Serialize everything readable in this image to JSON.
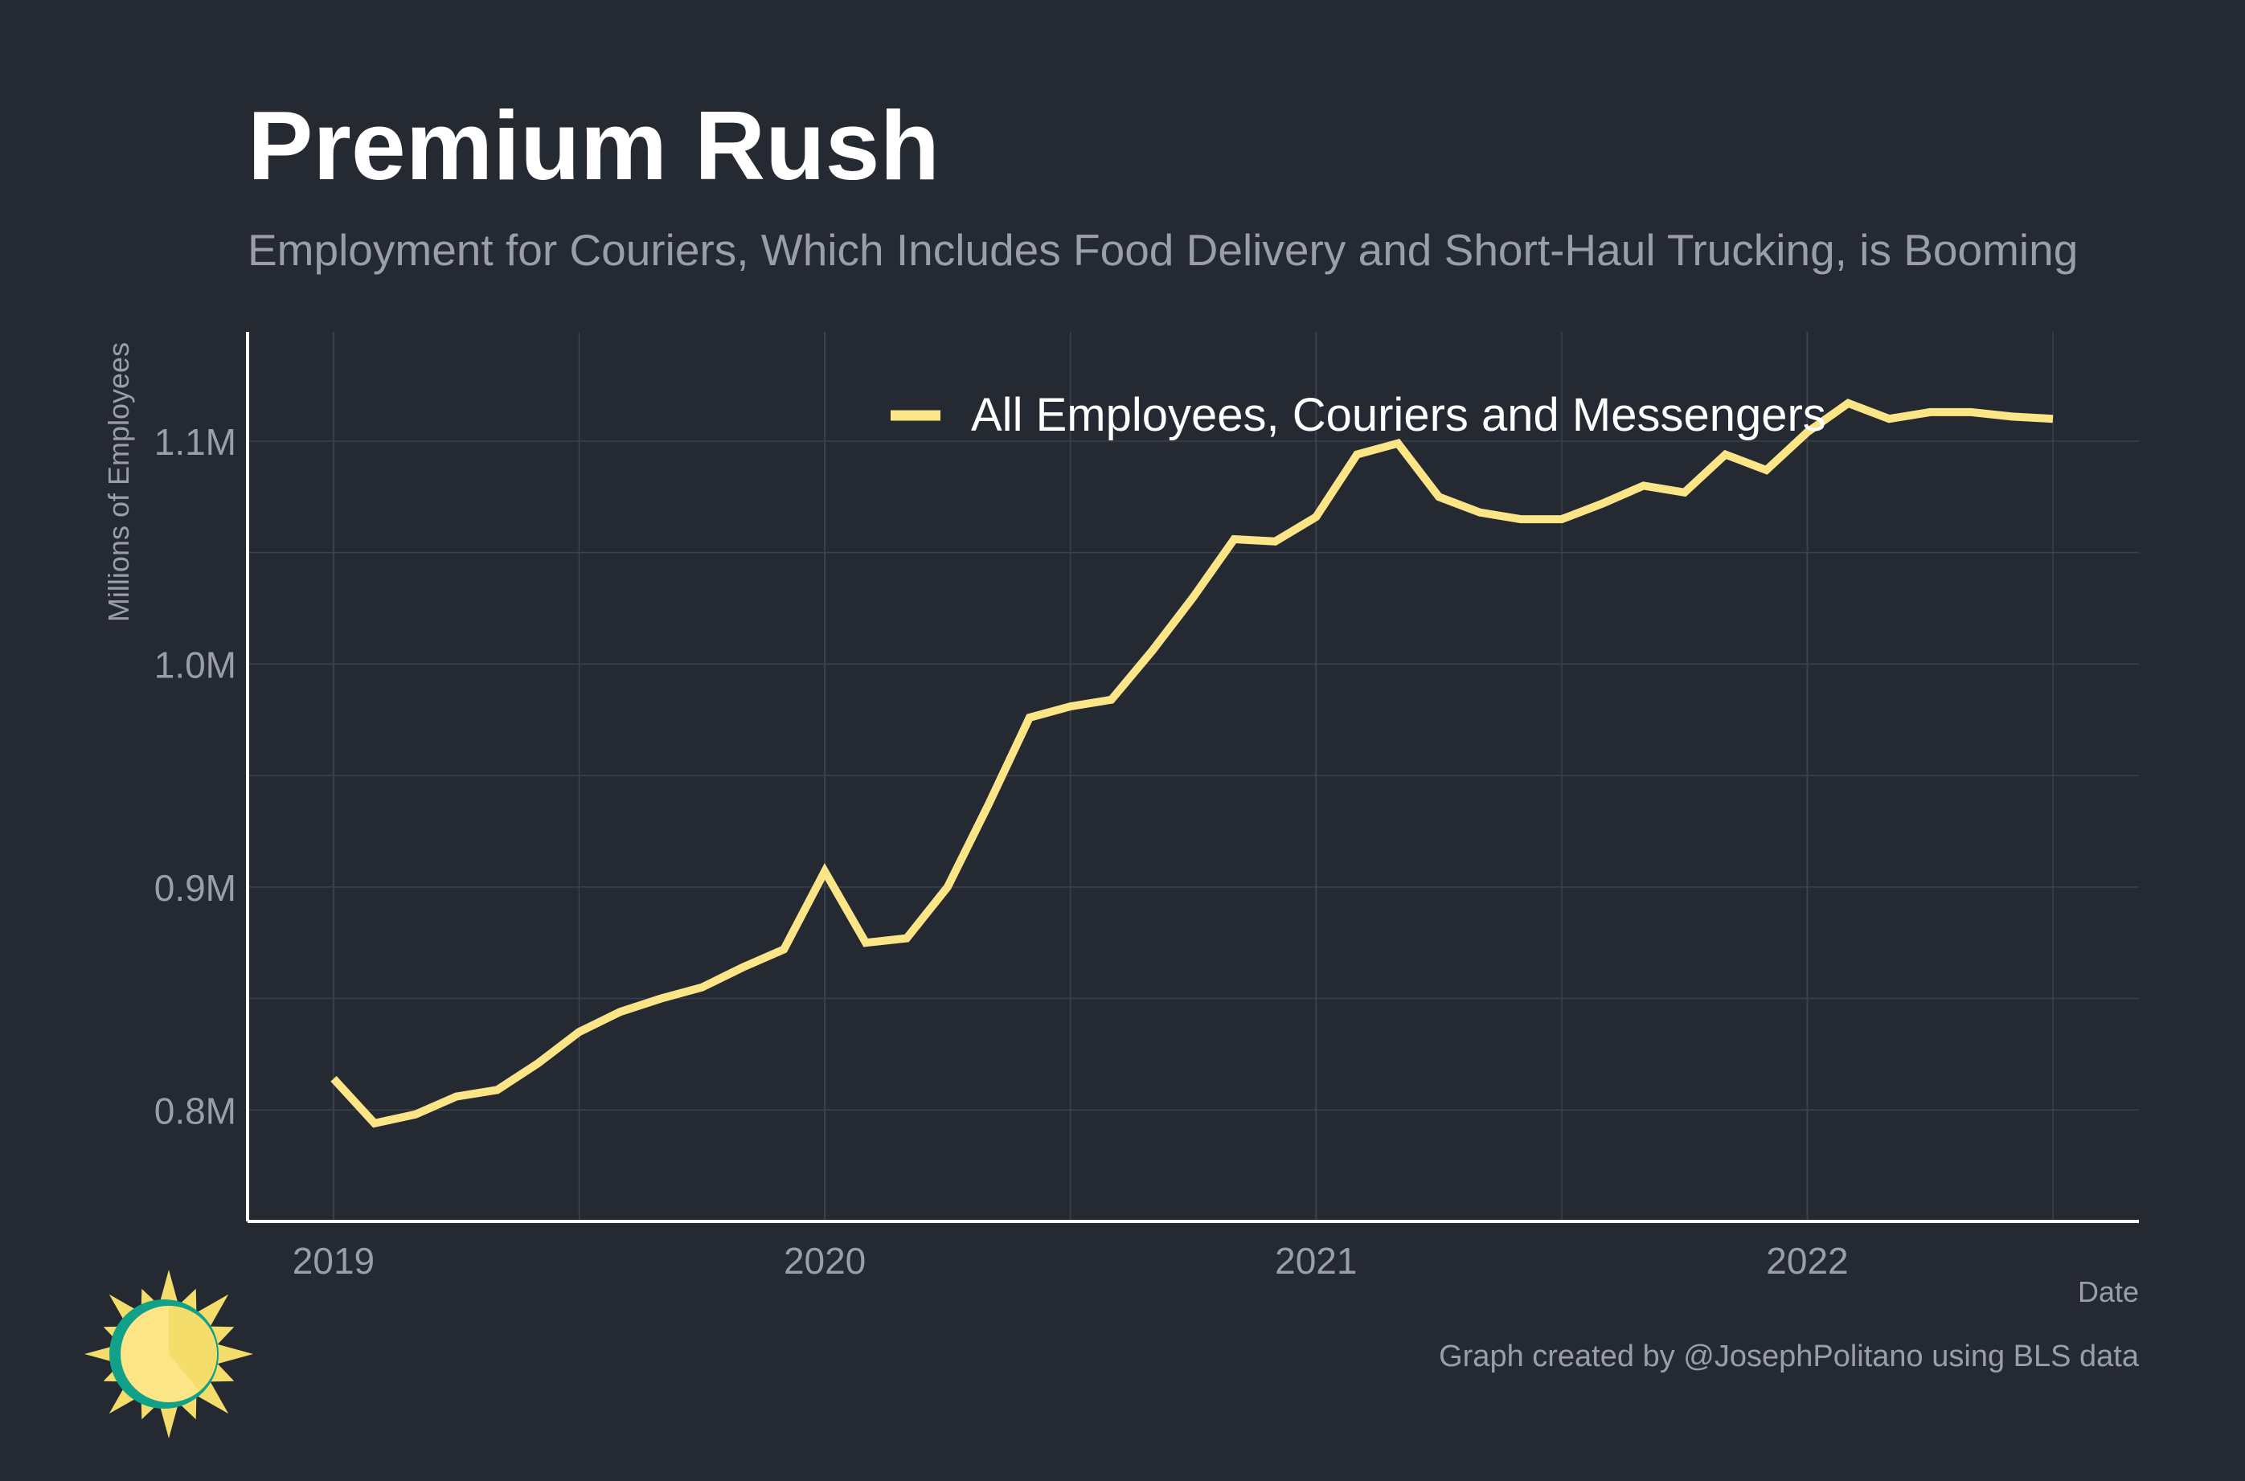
{
  "chart_data": {
    "type": "line",
    "title": "Premium Rush",
    "subtitle": "Employment for Couriers, Which Includes Food Delivery and Short-Haul Trucking, is Booming",
    "xlabel": "Date",
    "ylabel": "Millions of Employees",
    "caption": "Graph created by @JosephPolitano using BLS data",
    "x_tick_labels": [
      "2019",
      "2020",
      "2021",
      "2022"
    ],
    "y_tick_labels": [
      "0.8M",
      "0.9M",
      "1.0M",
      "1.1M"
    ],
    "x_ticks": [
      2019,
      2020,
      2021,
      2022
    ],
    "y_ticks": [
      0.8,
      0.9,
      1.0,
      1.1
    ],
    "xlim": [
      2018.825,
      2022.675
    ],
    "ylim": [
      0.75,
      1.149
    ],
    "grid": true,
    "legend_position": "top-right",
    "series": [
      {
        "name": "All Employees, Couriers and Messengers",
        "color": "#fce586",
        "x": [
          "2019-01",
          "2019-02",
          "2019-03",
          "2019-04",
          "2019-05",
          "2019-06",
          "2019-07",
          "2019-08",
          "2019-09",
          "2019-10",
          "2019-11",
          "2019-12",
          "2020-01",
          "2020-02",
          "2020-03",
          "2020-04",
          "2020-05",
          "2020-06",
          "2020-07",
          "2020-08",
          "2020-09",
          "2020-10",
          "2020-11",
          "2020-12",
          "2021-01",
          "2021-02",
          "2021-03",
          "2021-04",
          "2021-05",
          "2021-06",
          "2021-07",
          "2021-08",
          "2021-09",
          "2021-10",
          "2021-11",
          "2021-12",
          "2022-01",
          "2022-02",
          "2022-03",
          "2022-04",
          "2022-05",
          "2022-06",
          "2022-07"
        ],
        "values": [
          0.814,
          0.794,
          0.798,
          0.806,
          0.809,
          0.821,
          0.835,
          0.844,
          0.85,
          0.855,
          0.864,
          0.872,
          0.907,
          0.875,
          0.877,
          0.9,
          0.937,
          0.976,
          0.981,
          0.984,
          1.006,
          1.03,
          1.056,
          1.055,
          1.066,
          1.094,
          1.099,
          1.075,
          1.068,
          1.065,
          1.065,
          1.072,
          1.08,
          1.077,
          1.094,
          1.087,
          1.104,
          1.117,
          1.11,
          1.113,
          1.113,
          1.111,
          1.11
        ]
      }
    ]
  },
  "colors": {
    "background": "#252932",
    "line": "#fce586",
    "grid": "#3c414b",
    "axis": "#ffffff",
    "title": "#ffffff",
    "muted_text": "#9a9ea6",
    "logo_teal": "#11a088"
  },
  "logo": {
    "icon": "sun-logo-icon"
  }
}
